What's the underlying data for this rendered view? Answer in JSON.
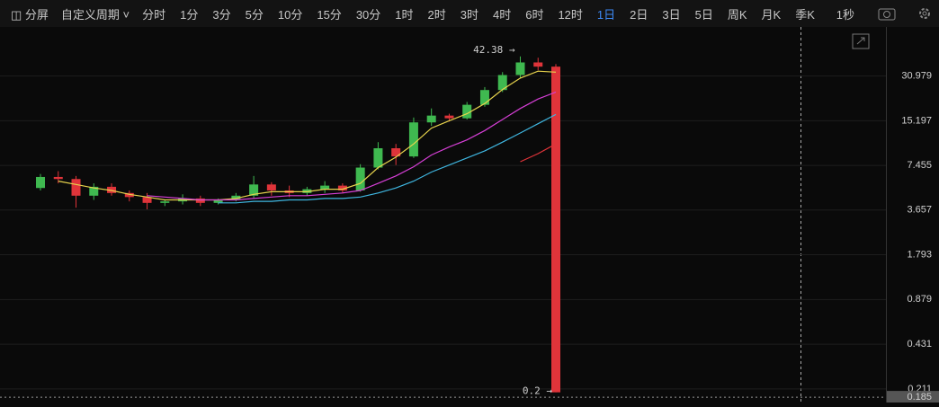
{
  "toolbar": {
    "split": "分屏",
    "custom": "自定义周期",
    "periods": [
      "分时",
      "1分",
      "3分",
      "5分",
      "10分",
      "15分",
      "30分",
      "1时",
      "2时",
      "3时",
      "4时",
      "6时",
      "12时",
      "1日",
      "2日",
      "3日",
      "5日",
      "周K",
      "月K",
      "季K"
    ],
    "active_period": 13,
    "refresh": "1秒"
  },
  "chart_data": {
    "type": "candlestick",
    "log_scale": true,
    "ylim": [
      0.17,
      67.8
    ],
    "yticks": [
      30.979,
      15.197,
      7.455,
      3.657,
      1.793,
      0.879,
      0.431,
      0.211
    ],
    "grid": true,
    "up_color": "#3fb950",
    "down_color": "#e0343a",
    "open": [
      5.2,
      6.2,
      6.0,
      4.6,
      5.3,
      4.8,
      4.5,
      4.1,
      4.2,
      4.4,
      4.1,
      4.3,
      4.6,
      5.5,
      5.0,
      4.8,
      5.1,
      5.4,
      5.0,
      7.2,
      9.8,
      8.6,
      14.8,
      16.5,
      15.8,
      19.6,
      24.8,
      31.5,
      38.5,
      36.0
    ],
    "high": [
      6.5,
      6.8,
      6.3,
      5.6,
      5.6,
      5.0,
      4.8,
      4.3,
      4.7,
      4.6,
      4.4,
      4.8,
      6.3,
      5.7,
      5.4,
      5.3,
      5.8,
      5.6,
      7.6,
      10.8,
      10.5,
      16.0,
      18.5,
      17.0,
      20.5,
      26.0,
      33.0,
      42.38,
      41.5,
      37.5
    ],
    "low": [
      5.0,
      5.6,
      3.8,
      4.3,
      4.6,
      4.2,
      3.7,
      3.9,
      4.0,
      3.9,
      4.0,
      4.2,
      4.4,
      4.6,
      4.5,
      4.6,
      4.8,
      4.8,
      4.9,
      7.0,
      7.5,
      8.4,
      14.0,
      15.0,
      15.5,
      19.0,
      24.0,
      30.0,
      34.0,
      0.2
    ],
    "close": [
      6.2,
      6.0,
      4.6,
      5.3,
      4.8,
      4.5,
      4.1,
      4.2,
      4.4,
      4.1,
      4.3,
      4.6,
      5.5,
      5.0,
      4.8,
      5.1,
      5.4,
      5.0,
      7.2,
      9.8,
      8.6,
      14.8,
      16.5,
      15.8,
      19.6,
      24.8,
      31.5,
      38.5,
      36.0,
      0.2
    ],
    "series": [
      {
        "color": "#e8d44d",
        "values": [
          null,
          5.8,
          5.5,
          5.2,
          5.0,
          4.7,
          4.5,
          4.3,
          4.3,
          4.3,
          4.3,
          4.4,
          4.7,
          4.9,
          4.9,
          4.9,
          5.1,
          5.1,
          5.6,
          7.2,
          8.5,
          10.5,
          13.5,
          15.2,
          17.0,
          20.0,
          25.0,
          30.0,
          33.5,
          33.0
        ]
      },
      {
        "color": "#d63fd6",
        "values": [
          null,
          null,
          null,
          null,
          null,
          null,
          4.6,
          4.5,
          4.4,
          4.3,
          4.3,
          4.3,
          4.4,
          4.5,
          4.6,
          4.6,
          4.7,
          4.8,
          5.0,
          5.6,
          6.3,
          7.3,
          8.8,
          10.0,
          11.2,
          13.0,
          15.5,
          18.5,
          21.5,
          24.0
        ]
      },
      {
        "color": "#3fb6e0",
        "values": [
          null,
          null,
          null,
          null,
          null,
          null,
          null,
          null,
          null,
          null,
          4.1,
          4.1,
          4.2,
          4.2,
          4.3,
          4.3,
          4.4,
          4.4,
          4.5,
          4.8,
          5.2,
          5.8,
          6.7,
          7.5,
          8.4,
          9.4,
          10.8,
          12.5,
          14.5,
          16.8
        ]
      },
      {
        "color": "#e0343a",
        "values": [
          null,
          null,
          null,
          null,
          null,
          null,
          null,
          null,
          null,
          null,
          null,
          null,
          null,
          null,
          null,
          null,
          null,
          null,
          null,
          null,
          null,
          null,
          null,
          null,
          null,
          null,
          null,
          7.9,
          9.0,
          10.5
        ]
      }
    ],
    "max_label": "42.38 →",
    "min_label": "0.2 →",
    "last_price": 0.185
  }
}
